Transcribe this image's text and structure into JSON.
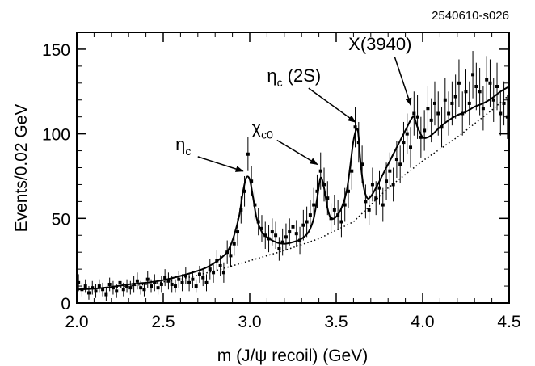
{
  "chart_data": {
    "type": "scatter",
    "figure_id": "2540610-s026",
    "xlabel": "m (J/ψ recoil) (GeV)",
    "ylabel": "Events/0.02 GeV",
    "xlim": [
      2.0,
      4.5
    ],
    "ylim": [
      0,
      160
    ],
    "xticks": [
      2.0,
      2.5,
      3.0,
      3.5,
      4.0,
      4.5
    ],
    "xtick_labels": [
      "2.0",
      "2.5",
      "3.0",
      "3.5",
      "4.0",
      "4.5"
    ],
    "yticks": [
      0,
      50,
      100,
      150
    ],
    "ytick_labels": [
      "0",
      "50",
      "100",
      "150"
    ],
    "grid": false,
    "annotations": [
      {
        "main": "η",
        "sub": "c",
        "suffix": "",
        "x": 2.98,
        "y": 76
      },
      {
        "main": "χ",
        "sub": "c0",
        "suffix": "",
        "x": 3.41,
        "y": 80
      },
      {
        "main": "η",
        "sub": "c",
        "suffix": "(2S)",
        "x": 3.63,
        "y": 105
      },
      {
        "main": "X(3940)",
        "sub": "",
        "suffix": "",
        "x": 3.95,
        "y": 115
      }
    ],
    "series": [
      {
        "kind": "data-points-with-errors",
        "x": [
          2.01,
          2.03,
          2.05,
          2.07,
          2.09,
          2.11,
          2.13,
          2.15,
          2.17,
          2.19,
          2.21,
          2.23,
          2.25,
          2.27,
          2.29,
          2.31,
          2.33,
          2.35,
          2.37,
          2.39,
          2.41,
          2.43,
          2.45,
          2.47,
          2.49,
          2.51,
          2.53,
          2.55,
          2.57,
          2.59,
          2.61,
          2.63,
          2.65,
          2.67,
          2.69,
          2.71,
          2.73,
          2.75,
          2.77,
          2.79,
          2.81,
          2.83,
          2.85,
          2.87,
          2.89,
          2.91,
          2.93,
          2.95,
          2.97,
          2.99,
          3.01,
          3.03,
          3.05,
          3.07,
          3.09,
          3.11,
          3.13,
          3.15,
          3.17,
          3.19,
          3.21,
          3.23,
          3.25,
          3.27,
          3.29,
          3.31,
          3.33,
          3.35,
          3.37,
          3.39,
          3.41,
          3.43,
          3.45,
          3.47,
          3.49,
          3.51,
          3.53,
          3.55,
          3.57,
          3.59,
          3.61,
          3.63,
          3.65,
          3.67,
          3.69,
          3.71,
          3.73,
          3.75,
          3.77,
          3.79,
          3.81,
          3.83,
          3.85,
          3.87,
          3.89,
          3.91,
          3.93,
          3.95,
          3.97,
          3.99,
          4.01,
          4.03,
          4.05,
          4.07,
          4.09,
          4.11,
          4.13,
          4.15,
          4.17,
          4.19,
          4.21,
          4.23,
          4.25,
          4.27,
          4.29,
          4.31,
          4.33,
          4.35,
          4.37,
          4.39,
          4.41,
          4.43,
          4.45,
          4.47,
          4.49
        ],
        "y": [
          12,
          8,
          10,
          6,
          9,
          7,
          10,
          8,
          5,
          11,
          9,
          7,
          12,
          8,
          10,
          9,
          11,
          13,
          9,
          8,
          14,
          10,
          12,
          9,
          11,
          15,
          13,
          11,
          10,
          14,
          12,
          16,
          12,
          14,
          10,
          17,
          15,
          12,
          20,
          18,
          25,
          22,
          18,
          30,
          28,
          35,
          42,
          55,
          66,
          88,
          72,
          58,
          48,
          44,
          40,
          38,
          42,
          40,
          32,
          36,
          39,
          42,
          45,
          41,
          37,
          46,
          48,
          52,
          58,
          66,
          78,
          70,
          62,
          50,
          55,
          52,
          48,
          58,
          66,
          78,
          104,
          95,
          82,
          60,
          55,
          70,
          62,
          68,
          58,
          72,
          78,
          70,
          85,
          82,
          95,
          100,
          92,
          112,
          110,
          98,
          102,
          115,
          108,
          118,
          112,
          104,
          120,
          112,
          118,
          122,
          130,
          112,
          125,
          118,
          135,
          128,
          125,
          115,
          132,
          130,
          120,
          128,
          112,
          118,
          110
        ],
        "err": [
          5,
          4,
          4,
          4,
          4,
          4,
          4,
          4,
          4,
          4,
          4,
          4,
          5,
          4,
          4,
          4,
          5,
          5,
          4,
          4,
          5,
          4,
          5,
          4,
          5,
          5,
          5,
          5,
          4,
          5,
          5,
          5,
          5,
          5,
          4,
          5,
          5,
          5,
          6,
          6,
          6,
          6,
          6,
          7,
          7,
          7,
          8,
          8,
          9,
          10,
          9,
          9,
          8,
          8,
          8,
          8,
          8,
          8,
          7,
          8,
          8,
          8,
          9,
          8,
          8,
          9,
          9,
          9,
          10,
          10,
          11,
          10,
          10,
          9,
          9,
          9,
          9,
          10,
          10,
          11,
          12,
          12,
          11,
          10,
          9,
          10,
          10,
          10,
          10,
          11,
          11,
          10,
          11,
          11,
          12,
          12,
          12,
          13,
          13,
          12,
          12,
          13,
          13,
          13,
          13,
          12,
          13,
          13,
          13,
          13,
          14,
          13,
          13,
          13,
          14,
          14,
          14,
          13,
          14,
          14,
          13,
          14,
          13,
          13,
          13
        ]
      },
      {
        "kind": "fit-line",
        "style": "solid",
        "x": [
          2.0,
          2.1,
          2.2,
          2.3,
          2.4,
          2.5,
          2.6,
          2.7,
          2.75,
          2.8,
          2.85,
          2.88,
          2.91,
          2.94,
          2.96,
          2.98,
          3.0,
          3.02,
          3.04,
          3.07,
          3.1,
          3.15,
          3.2,
          3.25,
          3.3,
          3.34,
          3.37,
          3.39,
          3.41,
          3.43,
          3.45,
          3.47,
          3.5,
          3.53,
          3.56,
          3.58,
          3.6,
          3.62,
          3.63,
          3.64,
          3.66,
          3.68,
          3.7,
          3.73,
          3.76,
          3.8,
          3.84,
          3.88,
          3.91,
          3.93,
          3.95,
          3.97,
          4.0,
          4.03,
          4.06,
          4.1,
          4.15,
          4.2,
          4.25,
          4.3,
          4.35,
          4.4,
          4.45,
          4.5
        ],
        "y": [
          8,
          8.5,
          9.5,
          11,
          12,
          13.5,
          16,
          19,
          21,
          24,
          28,
          32,
          40,
          52,
          65,
          74,
          73,
          62,
          50,
          42,
          39,
          36,
          35,
          36,
          38,
          42,
          50,
          62,
          74,
          68,
          56,
          50,
          51,
          56,
          66,
          80,
          96,
          103,
          98,
          84,
          68,
          62,
          63,
          68,
          74,
          82,
          90,
          98,
          104,
          108,
          110,
          104,
          98,
          98,
          100,
          104,
          108,
          111,
          113,
          116,
          118,
          121,
          125,
          128
        ]
      },
      {
        "kind": "background-line",
        "style": "dotted",
        "x": [
          2.0,
          2.2,
          2.4,
          2.6,
          2.8,
          3.0,
          3.2,
          3.4,
          3.5,
          3.6,
          3.7,
          3.8,
          3.9,
          4.0,
          4.1,
          4.2,
          4.3,
          4.4,
          4.5
        ],
        "y": [
          8,
          9,
          11,
          14,
          19,
          25,
          31,
          38,
          43,
          48,
          58,
          68,
          76,
          84,
          91,
          98,
          106,
          114,
          123
        ]
      }
    ]
  }
}
